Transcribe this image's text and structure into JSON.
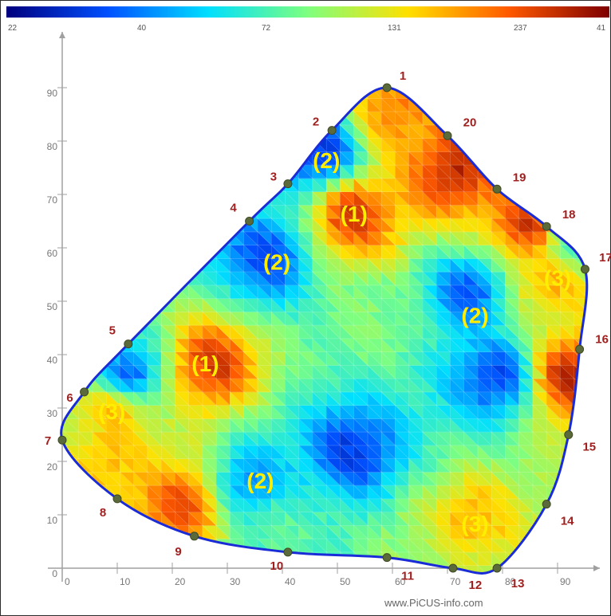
{
  "chart_data": {
    "type": "heatmap",
    "title": "",
    "xlabel": "",
    "ylabel": "",
    "xlim": [
      0,
      100
    ],
    "ylim": [
      0,
      96
    ],
    "x_ticks": [
      0,
      10,
      20,
      30,
      40,
      50,
      60,
      70,
      80,
      90
    ],
    "y_ticks": [
      0,
      10,
      20,
      30,
      40,
      50,
      60,
      70,
      80,
      90
    ],
    "x_tick_labels": [
      "0",
      "10",
      "20",
      "30",
      "40",
      "50",
      "60",
      "70",
      "80",
      "90"
    ],
    "y_tick_labels": [
      "0",
      "10",
      "20",
      "30",
      "40",
      "50",
      "60",
      "70",
      "80",
      "90"
    ],
    "color_scale": {
      "labels": [
        "22",
        "40",
        "72",
        "131",
        "237",
        "41"
      ],
      "colors": [
        "#00007f",
        "#0050ff",
        "#00dfff",
        "#7fff7f",
        "#ffe000",
        "#ff5a00",
        "#800000"
      ]
    },
    "grid": false,
    "measurement_points": [
      {
        "id": "1",
        "x": 59,
        "y": 90
      },
      {
        "id": "2",
        "x": 49,
        "y": 82
      },
      {
        "id": "3",
        "x": 41,
        "y": 72
      },
      {
        "id": "4",
        "x": 34,
        "y": 65
      },
      {
        "id": "5",
        "x": 12,
        "y": 42
      },
      {
        "id": "6",
        "x": 4,
        "y": 33
      },
      {
        "id": "7",
        "x": 0,
        "y": 24
      },
      {
        "id": "8",
        "x": 10,
        "y": 13
      },
      {
        "id": "9",
        "x": 24,
        "y": 6
      },
      {
        "id": "10",
        "x": 41,
        "y": 3
      },
      {
        "id": "11",
        "x": 59,
        "y": 2
      },
      {
        "id": "12",
        "x": 71,
        "y": 0
      },
      {
        "id": "13",
        "x": 79,
        "y": 0
      },
      {
        "id": "14",
        "x": 88,
        "y": 12
      },
      {
        "id": "15",
        "x": 92,
        "y": 25
      },
      {
        "id": "16",
        "x": 94,
        "y": 41
      },
      {
        "id": "17",
        "x": 95,
        "y": 56
      },
      {
        "id": "18",
        "x": 88,
        "y": 64
      },
      {
        "id": "19",
        "x": 79,
        "y": 71
      },
      {
        "id": "20",
        "x": 70,
        "y": 81
      }
    ],
    "annotations": [
      {
        "label": "(1)",
        "x": 53,
        "y": 66
      },
      {
        "label": "(2)",
        "x": 48,
        "y": 76
      },
      {
        "label": "(2)",
        "x": 39,
        "y": 57
      },
      {
        "label": "(3)",
        "x": 90,
        "y": 54
      },
      {
        "label": "(2)",
        "x": 75,
        "y": 47
      },
      {
        "label": "(1)",
        "x": 26,
        "y": 38
      },
      {
        "label": "(3)",
        "x": 9,
        "y": 29
      },
      {
        "label": "(2)",
        "x": 36,
        "y": 16
      },
      {
        "label": "(3)",
        "x": 75,
        "y": 8
      }
    ],
    "blobs": [
      {
        "level": 0.92,
        "x": 53,
        "y": 66
      },
      {
        "level": 0.92,
        "x": 27,
        "y": 38
      },
      {
        "level": 0.93,
        "x": 71,
        "y": 74
      },
      {
        "level": 0.93,
        "x": 85,
        "y": 64
      },
      {
        "level": 0.94,
        "x": 92,
        "y": 36
      },
      {
        "level": 0.8,
        "x": 60,
        "y": 86
      },
      {
        "level": 0.88,
        "x": 22,
        "y": 12
      },
      {
        "level": 0.75,
        "x": 10,
        "y": 30
      },
      {
        "level": 0.73,
        "x": 74,
        "y": 9
      },
      {
        "level": 0.75,
        "x": 89,
        "y": 54
      },
      {
        "level": 0.72,
        "x": 8,
        "y": 18
      },
      {
        "level": 0.1,
        "x": 47,
        "y": 78
      },
      {
        "level": 0.15,
        "x": 37,
        "y": 58
      },
      {
        "level": 0.15,
        "x": 74,
        "y": 52
      },
      {
        "level": 0.13,
        "x": 79,
        "y": 36
      },
      {
        "level": 0.12,
        "x": 53,
        "y": 22
      },
      {
        "level": 0.22,
        "x": 34,
        "y": 16
      },
      {
        "level": 0.15,
        "x": 12,
        "y": 36
      },
      {
        "level": 0.5,
        "x": 58,
        "y": 45
      },
      {
        "level": 0.55,
        "x": 66,
        "y": 2
      },
      {
        "level": 0.45,
        "x": 42,
        "y": 8
      },
      {
        "level": 0.4,
        "x": 92,
        "y": 60
      }
    ],
    "background_level": 0.4
  },
  "watermark": "www.PiCUS-info.com"
}
